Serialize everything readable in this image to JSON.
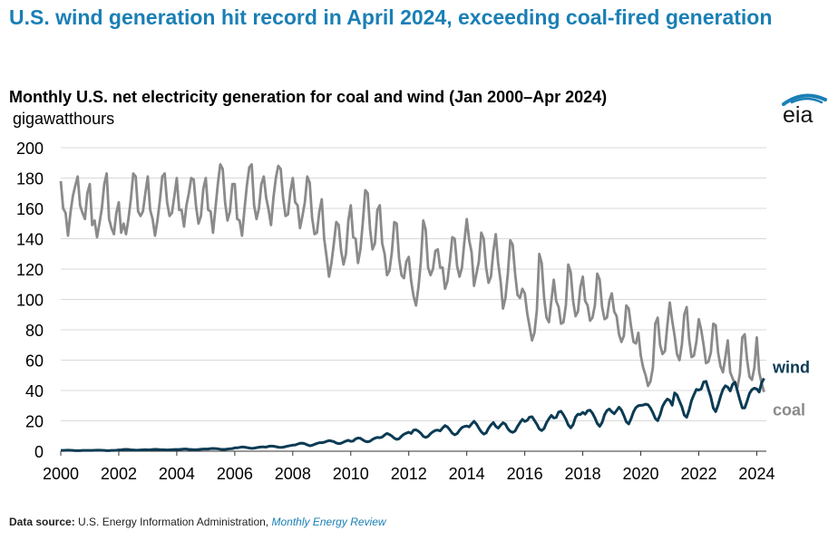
{
  "header": {
    "headline": "U.S. wind generation hit record in April 2024, exceeding coal-fired generation",
    "chart_title": "Monthly U.S. net electricity generation for coal and wind (Jan 2000–Apr 2024)",
    "unit_label": "gigawatthours",
    "logo_text": "eia"
  },
  "footer": {
    "source_label": "Data source:",
    "source_text": "U.S. Energy Information Administration,",
    "source_publication": "Monthly Energy Review"
  },
  "colors": {
    "coal": "#8a8a8a",
    "wind": "#0b3b54",
    "headline": "#1a7fb5",
    "grid": "#d9d9d9",
    "axis": "#333333"
  },
  "chart_data": {
    "type": "line",
    "title": "Monthly U.S. net electricity generation for coal and wind (Jan 2000–Apr 2024)",
    "ylabel": "gigawatthours",
    "xlabel": "",
    "ylim": [
      0,
      200
    ],
    "xlim": [
      2000,
      2024.33
    ],
    "grid": true,
    "legend": "direct labels at line ends",
    "y_ticks": [
      "0",
      "20",
      "40",
      "60",
      "80",
      "100",
      "120",
      "140",
      "160",
      "180",
      "200"
    ],
    "x_ticks": [
      "2000",
      "2002",
      "2004",
      "2006",
      "2008",
      "2010",
      "2012",
      "2014",
      "2016",
      "2018",
      "2020",
      "2022",
      "2024"
    ],
    "series": [
      {
        "name": "coal",
        "start": "2000-01",
        "frequency": "monthly",
        "annual_values": [
          [
            178,
            160,
            157,
            142,
            157,
            168,
            175,
            181,
            162,
            157,
            153,
            170
          ],
          [
            176,
            149,
            152,
            141,
            150,
            160,
            176,
            183,
            153,
            147,
            143,
            157
          ],
          [
            164,
            144,
            150,
            143,
            153,
            166,
            183,
            181,
            158,
            155,
            158,
            170
          ],
          [
            181,
            159,
            153,
            142,
            152,
            165,
            181,
            183,
            164,
            155,
            157,
            168
          ],
          [
            180,
            159,
            159,
            148,
            162,
            170,
            180,
            179,
            161,
            150,
            155,
            173
          ],
          [
            180,
            159,
            158,
            144,
            160,
            176,
            189,
            186,
            164,
            152,
            158,
            176
          ],
          [
            176,
            153,
            152,
            142,
            159,
            175,
            187,
            189,
            162,
            153,
            160,
            176
          ],
          [
            181,
            167,
            159,
            149,
            167,
            180,
            188,
            186,
            167,
            155,
            156,
            171
          ],
          [
            180,
            164,
            162,
            147,
            155,
            164,
            181,
            177,
            154,
            143,
            144,
            158
          ],
          [
            166,
            140,
            128,
            115,
            124,
            137,
            151,
            149,
            132,
            123,
            130,
            152
          ],
          [
            162,
            141,
            140,
            124,
            133,
            151,
            172,
            170,
            146,
            133,
            137,
            159
          ],
          [
            162,
            137,
            130,
            116,
            119,
            131,
            151,
            150,
            127,
            116,
            114,
            125
          ],
          [
            128,
            112,
            102,
            96,
            108,
            125,
            152,
            146,
            121,
            116,
            120,
            132
          ],
          [
            133,
            121,
            121,
            107,
            112,
            125,
            141,
            140,
            122,
            115,
            121,
            138
          ],
          [
            153,
            139,
            131,
            109,
            117,
            125,
            144,
            140,
            121,
            111,
            115,
            132
          ],
          [
            143,
            124,
            112,
            94,
            101,
            117,
            139,
            136,
            117,
            103,
            101,
            107
          ],
          [
            104,
            91,
            82,
            73,
            78,
            93,
            130,
            124,
            101,
            88,
            85,
            99
          ],
          [
            113,
            99,
            95,
            84,
            85,
            96,
            123,
            118,
            99,
            89,
            92,
            108
          ],
          [
            115,
            99,
            96,
            86,
            88,
            96,
            117,
            113,
            95,
            87,
            88,
            99
          ],
          [
            104,
            92,
            89,
            77,
            72,
            76,
            96,
            94,
            82,
            72,
            71,
            78
          ],
          [
            63,
            55,
            50,
            43,
            46,
            55,
            84,
            88,
            70,
            64,
            66,
            83
          ],
          [
            98,
            86,
            76,
            64,
            60,
            70,
            90,
            95,
            74,
            62,
            63,
            72
          ],
          [
            87,
            80,
            70,
            58,
            59,
            65,
            84,
            83,
            65,
            56,
            52,
            62
          ],
          [
            73,
            52,
            48,
            44,
            42,
            51,
            75,
            77,
            60,
            49,
            47,
            55
          ],
          [
            75,
            52,
            45,
            39
          ]
        ]
      },
      {
        "name": "wind",
        "start": "2000-01",
        "frequency": "monthly",
        "annual_values": [
          [
            0.5,
            0.5,
            0.6,
            0.7,
            0.6,
            0.5,
            0.4,
            0.4,
            0.4,
            0.5,
            0.5,
            0.5
          ],
          [
            0.5,
            0.5,
            0.6,
            0.7,
            0.7,
            0.6,
            0.5,
            0.4,
            0.4,
            0.5,
            0.5,
            0.6
          ],
          [
            0.8,
            0.9,
            1.1,
            1.2,
            1.1,
            0.9,
            0.8,
            0.7,
            0.7,
            0.8,
            0.9,
            1.0
          ],
          [
            0.9,
            0.9,
            1.1,
            1.2,
            1.2,
            1.0,
            1.0,
            0.9,
            0.8,
            0.9,
            1.0,
            1.1
          ],
          [
            1.1,
            1.1,
            1.3,
            1.4,
            1.4,
            1.2,
            1.1,
            1.0,
            1.0,
            1.1,
            1.3,
            1.4
          ],
          [
            1.4,
            1.4,
            1.7,
            1.8,
            1.7,
            1.6,
            1.3,
            1.2,
            1.2,
            1.4,
            1.6,
            1.7
          ],
          [
            2.2,
            2.2,
            2.5,
            2.8,
            2.7,
            2.4,
            2.1,
            1.9,
            2.0,
            2.3,
            2.6,
            2.8
          ],
          [
            2.8,
            2.7,
            3.2,
            3.4,
            3.3,
            3.0,
            2.6,
            2.5,
            2.6,
            3.0,
            3.4,
            3.7
          ],
          [
            4.0,
            4.1,
            4.7,
            5.2,
            5.3,
            4.9,
            4.2,
            3.6,
            3.9,
            4.5,
            5.1,
            5.6
          ],
          [
            5.6,
            5.9,
            6.5,
            7.0,
            6.7,
            6.3,
            5.4,
            5.0,
            5.2,
            6.0,
            6.7,
            7.2
          ],
          [
            6.5,
            6.7,
            8.1,
            8.7,
            8.5,
            7.4,
            6.5,
            6.2,
            6.6,
            7.8,
            8.6,
            9.1
          ],
          [
            8.9,
            9.3,
            10.7,
            11.7,
            11.0,
            10.0,
            8.6,
            7.8,
            8.2,
            9.9,
            11.2,
            11.9
          ],
          [
            12.5,
            11.7,
            13.9,
            14.1,
            13.2,
            11.8,
            9.8,
            9.1,
            9.8,
            11.6,
            12.8,
            13.7
          ],
          [
            13.9,
            13.4,
            15.3,
            16.9,
            16.0,
            14.1,
            11.9,
            10.8,
            11.6,
            13.8,
            15.6,
            16.3
          ],
          [
            16.6,
            16.0,
            18.0,
            19.7,
            17.9,
            15.2,
            12.8,
            11.3,
            12.0,
            15.1,
            17.3,
            18.9
          ],
          [
            16.4,
            15.2,
            17.1,
            18.8,
            17.8,
            14.8,
            13.1,
            12.4,
            13.3,
            16.3,
            18.8,
            21.0
          ],
          [
            19.6,
            20.3,
            22.5,
            22.7,
            20.3,
            17.8,
            14.7,
            13.6,
            15.0,
            18.8,
            21.4,
            23.6
          ],
          [
            21.9,
            22.2,
            25.8,
            26.3,
            24.0,
            21.1,
            17.3,
            15.4,
            17.5,
            22.4,
            24.4,
            24.2
          ],
          [
            25.6,
            24.4,
            26.7,
            27.0,
            25.1,
            22.0,
            18.3,
            16.4,
            18.9,
            24.0,
            26.8,
            27.8
          ],
          [
            26.0,
            24.7,
            26.8,
            29.0,
            27.1,
            23.5,
            19.4,
            18.0,
            21.5,
            26.0,
            28.8,
            30.0
          ],
          [
            30.2,
            30.4,
            31.0,
            30.6,
            28.5,
            25.4,
            21.6,
            20.1,
            24.0,
            29.5,
            32.4,
            34.4
          ],
          [
            33.4,
            30.3,
            38.4,
            37.0,
            33.1,
            29.3,
            23.8,
            22.4,
            27.1,
            33.4,
            37.2,
            40.7
          ],
          [
            40.3,
            41.0,
            45.6,
            46.0,
            40.7,
            35.6,
            28.5,
            26.1,
            30.5,
            36.1,
            40.7,
            43.1
          ],
          [
            42.2,
            39.7,
            44.1,
            45.5,
            39.6,
            33.9,
            28.5,
            28.5,
            33.0,
            38.1,
            40.6,
            41.5
          ],
          [
            41.0,
            39.0,
            45.0,
            48.0
          ]
        ]
      }
    ]
  }
}
